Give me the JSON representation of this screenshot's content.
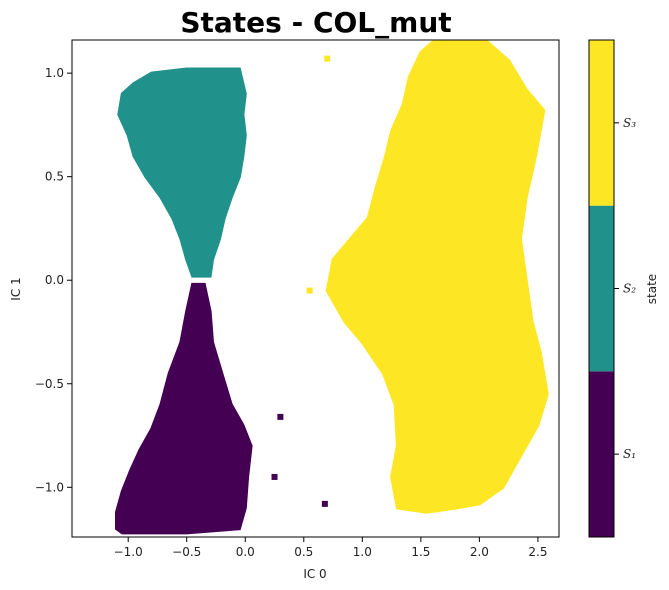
{
  "chart_data": {
    "type": "scatter",
    "title": "States - COL_mut",
    "xlabel": "IC 0",
    "ylabel": "IC 1",
    "xlim": [
      -1.48,
      2.68
    ],
    "ylim": [
      -1.24,
      1.16
    ],
    "xticks": [
      -1.0,
      -0.5,
      0.0,
      0.5,
      1.0,
      1.5,
      2.0,
      2.5
    ],
    "xtick_labels": [
      "−1.0",
      "−0.5",
      "0.0",
      "0.5",
      "1.0",
      "1.5",
      "2.0",
      "2.5"
    ],
    "yticks": [
      -1.0,
      -0.5,
      0.0,
      0.5,
      1.0
    ],
    "ytick_labels": [
      "−1.0",
      "−0.5",
      "0.0",
      "0.5",
      "1.0"
    ],
    "colorbar": {
      "label": "state",
      "levels": [
        {
          "name": "S₁",
          "state": 1,
          "color": "#440154"
        },
        {
          "name": "S₂",
          "state": 2,
          "color": "#21918c"
        },
        {
          "name": "S₃",
          "state": 3,
          "color": "#fde725"
        }
      ]
    },
    "series": [
      {
        "name": "S1",
        "state": 1,
        "color": "#440154",
        "region_x_range": [
          -1.12,
          0.1
        ],
        "region_y_range": [
          -1.22,
          -0.02
        ],
        "boundary": [
          [
            -1.1,
            -1.2
          ],
          [
            -1.05,
            -1.22
          ],
          [
            -0.5,
            -1.22
          ],
          [
            -0.05,
            -1.2
          ],
          [
            0.0,
            -1.1
          ],
          [
            0.02,
            -0.95
          ],
          [
            0.05,
            -0.8
          ],
          [
            -0.02,
            -0.7
          ],
          [
            -0.12,
            -0.6
          ],
          [
            -0.2,
            -0.45
          ],
          [
            -0.28,
            -0.3
          ],
          [
            -0.3,
            -0.15
          ],
          [
            -0.35,
            -0.02
          ],
          [
            -0.45,
            -0.02
          ],
          [
            -0.5,
            -0.15
          ],
          [
            -0.55,
            -0.3
          ],
          [
            -0.65,
            -0.45
          ],
          [
            -0.72,
            -0.6
          ],
          [
            -0.8,
            -0.72
          ],
          [
            -0.9,
            -0.82
          ],
          [
            -0.98,
            -0.92
          ],
          [
            -1.05,
            -1.02
          ],
          [
            -1.1,
            -1.12
          ]
        ]
      },
      {
        "name": "S2",
        "state": 2,
        "color": "#21918c",
        "region_x_range": [
          -1.12,
          0.0
        ],
        "region_y_range": [
          0.0,
          1.02
        ],
        "boundary": [
          [
            -1.08,
            0.8
          ],
          [
            -1.05,
            0.9
          ],
          [
            -0.95,
            0.95
          ],
          [
            -0.8,
            1.0
          ],
          [
            -0.5,
            1.02
          ],
          [
            -0.05,
            1.02
          ],
          [
            0.0,
            0.9
          ],
          [
            -0.02,
            0.8
          ],
          [
            0.0,
            0.7
          ],
          [
            -0.02,
            0.6
          ],
          [
            -0.05,
            0.5
          ],
          [
            -0.12,
            0.4
          ],
          [
            -0.18,
            0.3
          ],
          [
            -0.22,
            0.2
          ],
          [
            -0.28,
            0.1
          ],
          [
            -0.3,
            0.02
          ],
          [
            -0.45,
            0.02
          ],
          [
            -0.5,
            0.1
          ],
          [
            -0.55,
            0.2
          ],
          [
            -0.62,
            0.3
          ],
          [
            -0.72,
            0.4
          ],
          [
            -0.85,
            0.5
          ],
          [
            -0.95,
            0.6
          ],
          [
            -1.0,
            0.7
          ]
        ]
      },
      {
        "name": "S3",
        "state": 3,
        "color": "#fde725",
        "region_x_range": [
          0.5,
          2.62
        ],
        "region_y_range": [
          -1.12,
          1.16
        ],
        "boundary": [
          [
            1.6,
            1.15
          ],
          [
            2.05,
            1.16
          ],
          [
            2.25,
            1.06
          ],
          [
            2.4,
            0.92
          ],
          [
            2.55,
            0.82
          ],
          [
            2.48,
            0.6
          ],
          [
            2.4,
            0.4
          ],
          [
            2.35,
            0.2
          ],
          [
            2.4,
            0.0
          ],
          [
            2.45,
            -0.2
          ],
          [
            2.52,
            -0.35
          ],
          [
            2.58,
            -0.55
          ],
          [
            2.5,
            -0.7
          ],
          [
            2.35,
            -0.85
          ],
          [
            2.2,
            -1.0
          ],
          [
            2.0,
            -1.08
          ],
          [
            1.8,
            -1.1
          ],
          [
            1.55,
            -1.12
          ],
          [
            1.3,
            -1.1
          ],
          [
            1.25,
            -0.95
          ],
          [
            1.3,
            -0.8
          ],
          [
            1.28,
            -0.6
          ],
          [
            1.18,
            -0.45
          ],
          [
            1.0,
            -0.3
          ],
          [
            0.85,
            -0.2
          ],
          [
            0.7,
            -0.05
          ],
          [
            0.75,
            0.1
          ],
          [
            0.9,
            0.2
          ],
          [
            1.05,
            0.3
          ],
          [
            1.12,
            0.45
          ],
          [
            1.2,
            0.6
          ],
          [
            1.25,
            0.72
          ],
          [
            1.35,
            0.85
          ],
          [
            1.4,
            0.98
          ],
          [
            1.5,
            1.1
          ]
        ]
      }
    ],
    "scattered_points": [
      {
        "state": 1,
        "x": 0.3,
        "y": -0.66
      },
      {
        "state": 1,
        "x": 0.68,
        "y": -1.08
      },
      {
        "state": 1,
        "x": 0.25,
        "y": -0.95
      },
      {
        "state": 3,
        "x": 0.7,
        "y": 1.07
      },
      {
        "state": 3,
        "x": 0.55,
        "y": -0.05
      }
    ]
  }
}
